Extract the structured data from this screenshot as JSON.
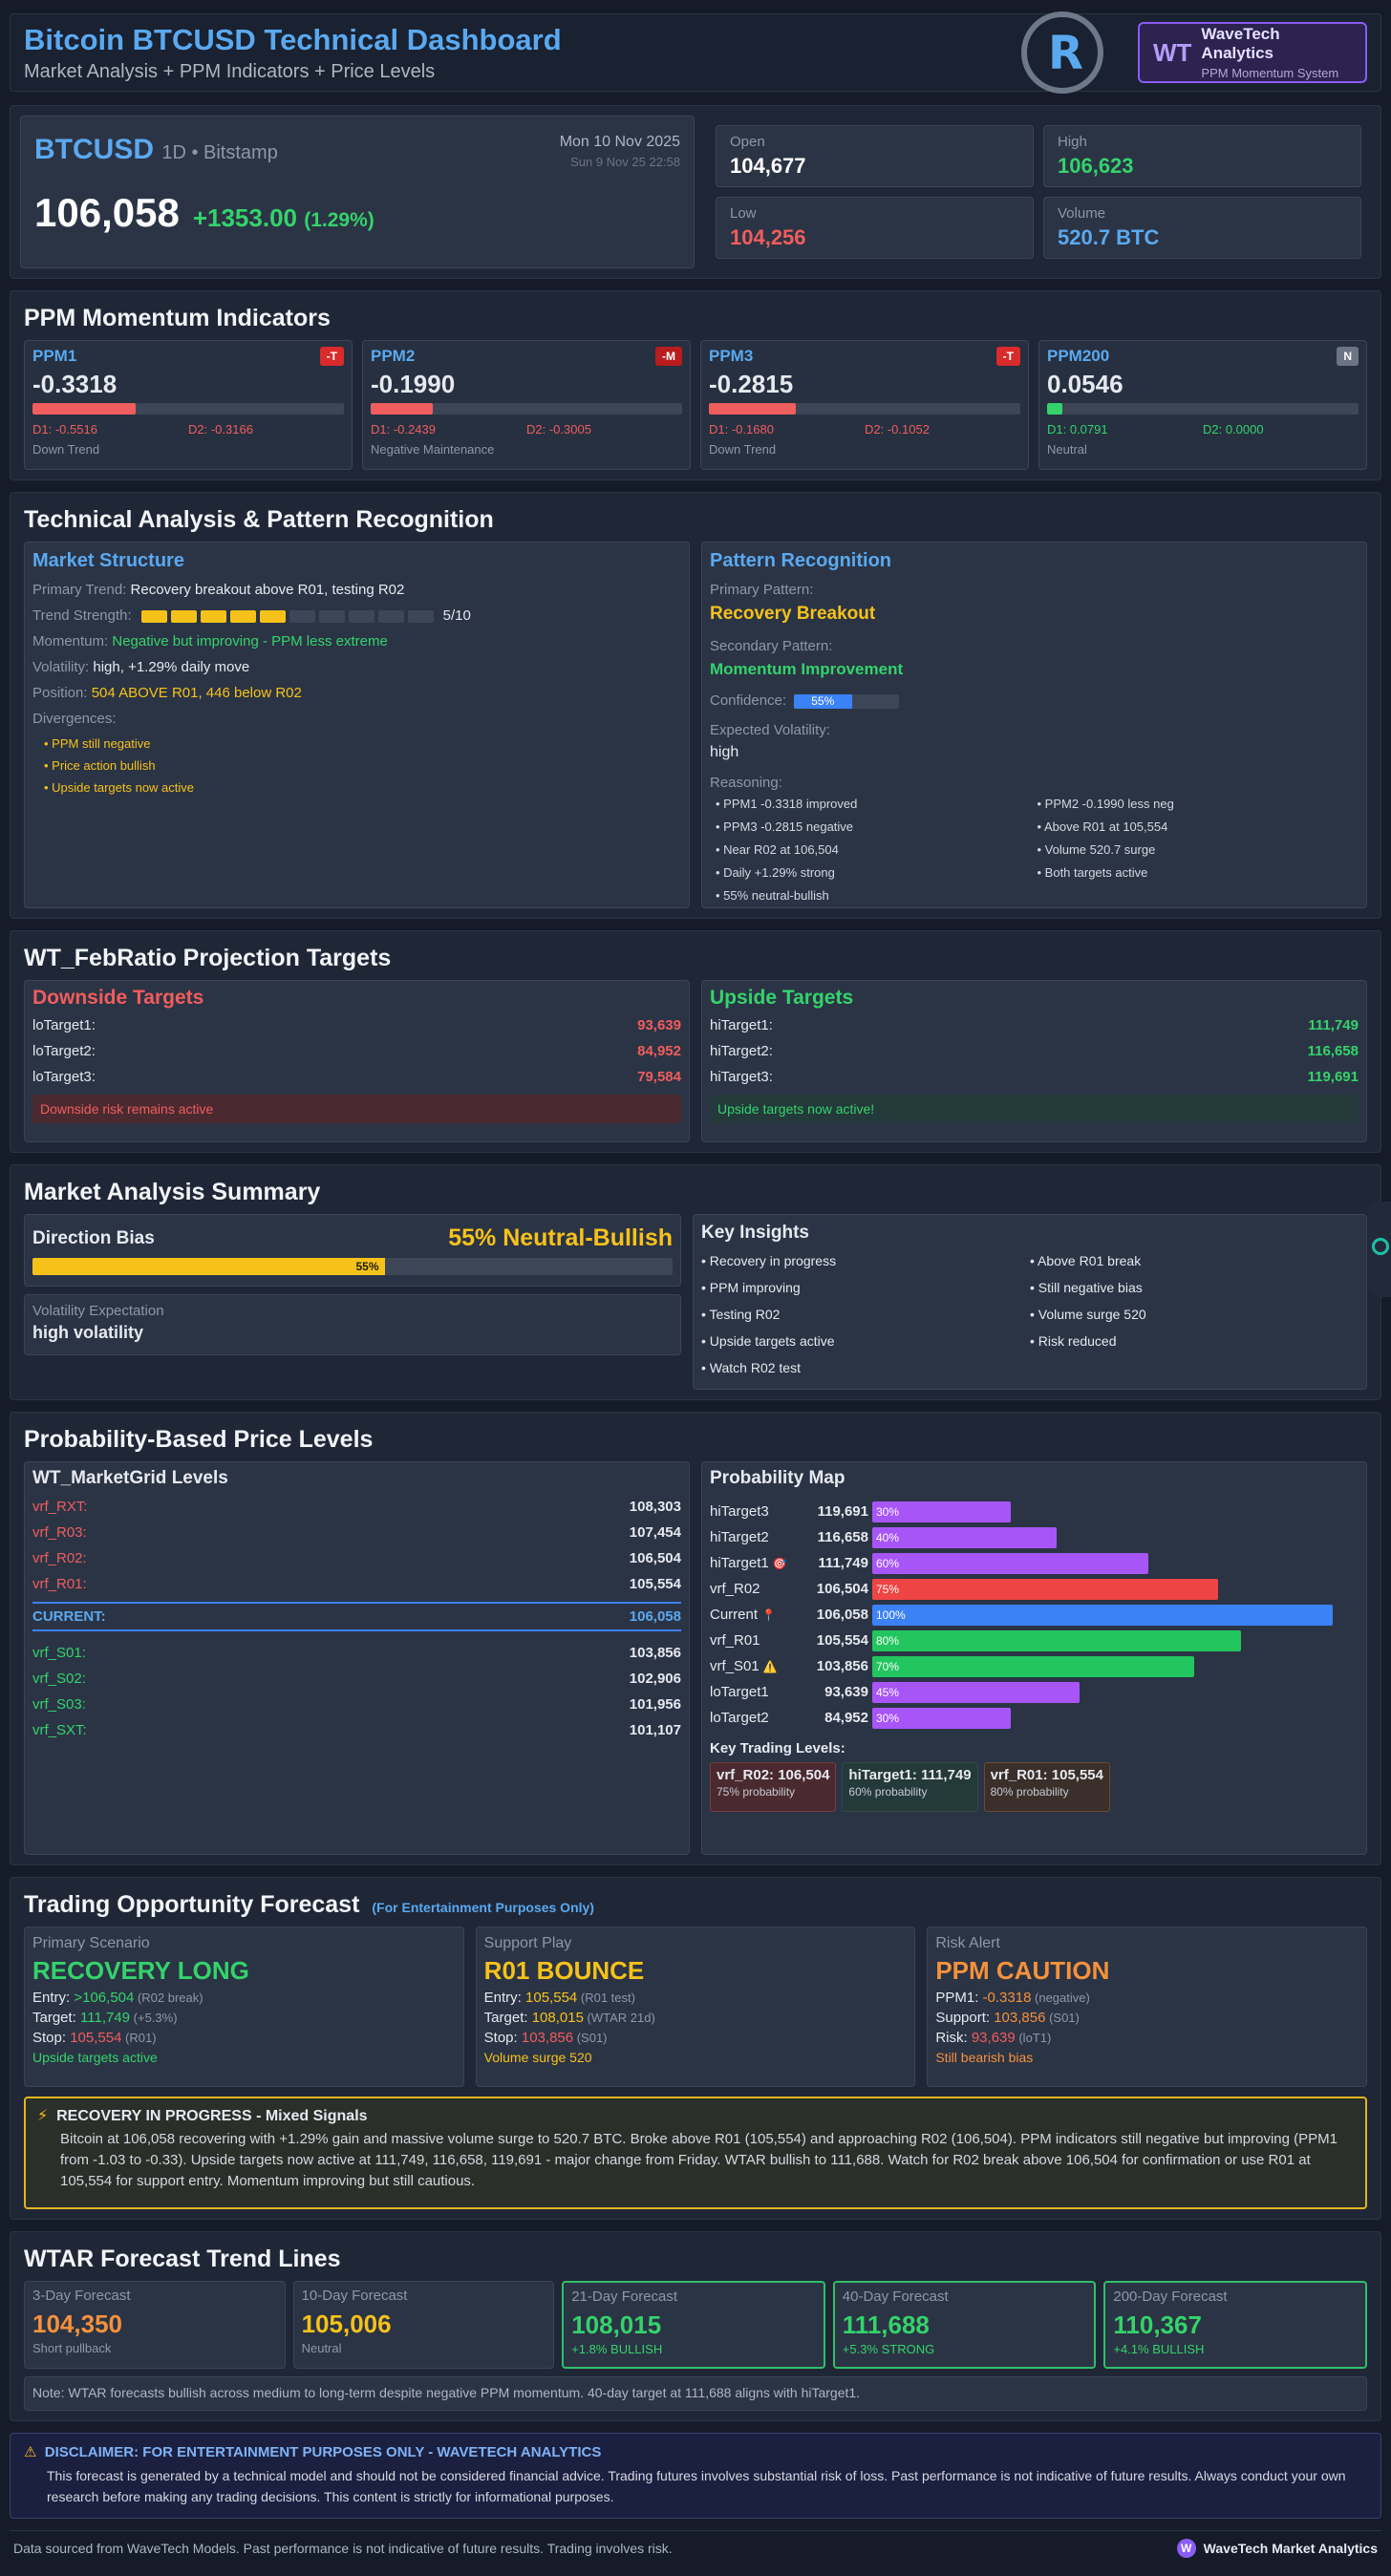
{
  "header": {
    "title": "Bitcoin BTCUSD Technical Dashboard",
    "subtitle": "Market Analysis + PPM Indicators + Price Levels",
    "logo_text": "R",
    "brand_badge": "WT",
    "brand_name": "WaveTech Analytics",
    "brand_tag": "PPM Momentum System"
  },
  "price": {
    "ticker": "BTCUSD",
    "meta": "1D • Bitstamp",
    "date": "Mon 10 Nov 2025",
    "time": "Sun 9 Nov 25 22:58",
    "last": "106,058",
    "change": "+1353.00",
    "change_pct": "(1.29%)",
    "ohlc": [
      {
        "label": "Open",
        "value": "104,677",
        "color": "#ffffff"
      },
      {
        "label": "High",
        "value": "106,623",
        "color": "#34d36b"
      },
      {
        "label": "Low",
        "value": "104,256",
        "color": "#f05d5d"
      },
      {
        "label": "Volume",
        "value": "520.7 BTC",
        "color": "#5aa9f0"
      }
    ]
  },
  "ppm": {
    "title": "PPM Momentum Indicators",
    "items": [
      {
        "name": "PPM1",
        "badge": "-T",
        "badge_color": "#d92b2b",
        "value": "-0.3318",
        "level": 0.33,
        "bar_color": "#f05d5d",
        "d1": "D1: -0.5516",
        "d2": "D2: -0.3166",
        "d_color": "#f05d5d",
        "foot": "Down Trend"
      },
      {
        "name": "PPM2",
        "badge": "-M",
        "badge_color": "#b91c1c",
        "value": "-0.1990",
        "level": 0.2,
        "bar_color": "#f05d5d",
        "d1": "D1: -0.2439",
        "d2": "D2: -0.3005",
        "d_color": "#f05d5d",
        "foot": "Negative Maintenance"
      },
      {
        "name": "PPM3",
        "badge": "-T",
        "badge_color": "#d92b2b",
        "value": "-0.2815",
        "level": 0.28,
        "bar_color": "#f05d5d",
        "d1": "D1: -0.1680",
        "d2": "D2: -0.1052",
        "d_color": "#f05d5d",
        "foot": "Down Trend"
      },
      {
        "name": "PPM200",
        "badge": "N",
        "badge_color": "#6b7385",
        "value": "0.0546",
        "level": 0.05,
        "bar_color": "#34d36b",
        "d1": "D1: 0.0791",
        "d2": "D2: 0.0000",
        "d_color": "#34d36b",
        "foot": "Neutral"
      }
    ]
  },
  "technical": {
    "title": "Technical Analysis & Pattern Recognition",
    "market_structure": {
      "title": "Market Structure",
      "primary_trend_label": "Primary Trend:",
      "primary_trend": "Recovery breakout above R01, testing R02",
      "strength_label": "Trend Strength:",
      "strength_value": 5,
      "strength_max": 10,
      "strength_text": "5/10",
      "momentum_label": "Momentum:",
      "momentum": "Negative but improving - PPM less extreme",
      "volatility_label": "Volatility:",
      "volatility": "high, +1.29% daily move",
      "position_label": "Position:",
      "position": "504 ABOVE R01, 446 below R02",
      "divergences_label": "Divergences:",
      "divergences": [
        "• PPM still negative",
        "• Price action bullish",
        "• Upside targets now active"
      ]
    },
    "pattern": {
      "title": "Pattern Recognition",
      "primary_label": "Primary Pattern:",
      "primary": "Recovery Breakout",
      "secondary_label": "Secondary Pattern:",
      "secondary": "Momentum Improvement",
      "confidence_label": "Confidence:",
      "confidence": 0.55,
      "confidence_text": "55%",
      "exp_vol_label": "Expected Volatility:",
      "exp_vol": "high",
      "reasoning_label": "Reasoning:",
      "reasoning": [
        "• PPM1 -0.3318 improved",
        "• PPM2 -0.1990 less neg",
        "• PPM3 -0.2815 negative",
        "• Above R01 at 105,554",
        "• Near R02 at 106,504",
        "• Volume 520.7 surge",
        "• Daily +1.29% strong",
        "• Both targets active",
        "• 55% neutral-bullish"
      ]
    }
  },
  "targets": {
    "title": "WT_FebRatio Projection Targets",
    "downside_title": "Downside Targets",
    "downside": [
      {
        "label": "loTarget1:",
        "value": "93,639"
      },
      {
        "label": "loTarget2:",
        "value": "84,952"
      },
      {
        "label": "loTarget3:",
        "value": "79,584"
      }
    ],
    "downside_note": "Downside risk remains active",
    "upside_title": "Upside Targets",
    "upside": [
      {
        "label": "hiTarget1:",
        "value": "111,749"
      },
      {
        "label": "hiTarget2:",
        "value": "116,658"
      },
      {
        "label": "hiTarget3:",
        "value": "119,691"
      }
    ],
    "upside_note": "Upside targets now active!"
  },
  "summary": {
    "title": "Market Analysis Summary",
    "direction_label": "Direction Bias",
    "direction_value": "55% Neutral-Bullish",
    "direction_level": 0.55,
    "direction_bar_text": "55%",
    "volatility_label": "Volatility Expectation",
    "volatility_value": "high volatility",
    "insights_title": "Key Insights",
    "insights": [
      "• Recovery in progress",
      "• Above R01 break",
      "• PPM improving",
      "• Still negative bias",
      "• Testing R02",
      "• Volume surge 520",
      "• Upside targets active",
      "• Risk reduced",
      "• Watch R02 test"
    ]
  },
  "levels": {
    "title": "Probability-Based Price Levels",
    "grid_title": "WT_MarketGrid Levels",
    "grid": [
      {
        "label": "vrf_RXT:",
        "value": "108,303",
        "color": "#f05d5d"
      },
      {
        "label": "vrf_R03:",
        "value": "107,454",
        "color": "#f05d5d"
      },
      {
        "label": "vrf_R02:",
        "value": "106,504",
        "color": "#f05d5d"
      },
      {
        "label": "vrf_R01:",
        "value": "105,554",
        "color": "#f05d5d"
      }
    ],
    "current_label": "CURRENT:",
    "current_value": "106,058",
    "support": [
      {
        "label": "vrf_S01:",
        "value": "103,856",
        "color": "#34d36b"
      },
      {
        "label": "vrf_S02:",
        "value": "102,906",
        "color": "#34d36b"
      },
      {
        "label": "vrf_S03:",
        "value": "101,956",
        "color": "#34d36b"
      },
      {
        "label": "vrf_SXT:",
        "value": "101,107",
        "color": "#34d36b"
      }
    ],
    "map_title": "Probability Map",
    "map": [
      {
        "label": "hiTarget3",
        "value": "119,691",
        "pct": 0.3,
        "pct_text": "30%",
        "color": "#a855f7",
        "icon": ""
      },
      {
        "label": "hiTarget2",
        "value": "116,658",
        "pct": 0.4,
        "pct_text": "40%",
        "color": "#a855f7",
        "icon": ""
      },
      {
        "label": "hiTarget1",
        "value": "111,749",
        "pct": 0.6,
        "pct_text": "60%",
        "color": "#a855f7",
        "icon": "🎯"
      },
      {
        "label": "vrf_R02",
        "value": "106,504",
        "pct": 0.75,
        "pct_text": "75%",
        "color": "#ef4444",
        "icon": ""
      },
      {
        "label": "Current",
        "value": "106,058",
        "pct": 1.0,
        "pct_text": "100%",
        "color": "#3b82f6",
        "icon": "📍"
      },
      {
        "label": "vrf_R01",
        "value": "105,554",
        "pct": 0.8,
        "pct_text": "80%",
        "color": "#22c55e",
        "icon": ""
      },
      {
        "label": "vrf_S01",
        "value": "103,856",
        "pct": 0.7,
        "pct_text": "70%",
        "color": "#22c55e",
        "icon": "⚠️"
      },
      {
        "label": "loTarget1",
        "value": "93,639",
        "pct": 0.45,
        "pct_text": "45%",
        "color": "#a855f7",
        "icon": ""
      },
      {
        "label": "loTarget2",
        "value": "84,952",
        "pct": 0.3,
        "pct_text": "30%",
        "color": "#a855f7",
        "icon": ""
      }
    ],
    "key_title": "Key Trading Levels:",
    "key_levels": [
      {
        "name": "vrf_R02: 106,504",
        "prob": "75% probability",
        "bg": "#4a2a30",
        "border": "#7a3a40"
      },
      {
        "name": "hiTarget1: 111,749",
        "prob": "60% probability",
        "bg": "#24393a",
        "border": "#2d4e48"
      },
      {
        "name": "vrf_R01: 105,554",
        "prob": "80% probability",
        "bg": "#3a2f2a",
        "border": "#6a4a30"
      }
    ]
  },
  "forecast": {
    "title": "Trading Opportunity Forecast",
    "title_note": "(For Entertainment Purposes Only)",
    "cards": [
      {
        "label": "Primary Scenario",
        "title": "RECOVERY LONG",
        "title_color": "#34d36b",
        "lines": [
          {
            "k": "Entry: ",
            "v": ">106,504",
            "vc": "#34d36b",
            "n": " (R02 break)"
          },
          {
            "k": "Target: ",
            "v": "111,749",
            "vc": "#34d36b",
            "n": " (+5.3%)"
          },
          {
            "k": "Stop: ",
            "v": "105,554",
            "vc": "#f05d5d",
            "n": " (R01)"
          }
        ],
        "foot": "Upside targets active",
        "foot_color": "#34d36b"
      },
      {
        "label": "Support Play",
        "title": "R01 BOUNCE",
        "title_color": "#f6c21a",
        "lines": [
          {
            "k": "Entry: ",
            "v": "105,554",
            "vc": "#f6c21a",
            "n": " (R01 test)"
          },
          {
            "k": "Target: ",
            "v": "108,015",
            "vc": "#f6c21a",
            "n": " (WTAR 21d)"
          },
          {
            "k": "Stop: ",
            "v": "103,856",
            "vc": "#f05d5d",
            "n": " (S01)"
          }
        ],
        "foot": "Volume surge 520",
        "foot_color": "#f6c21a"
      },
      {
        "label": "Risk Alert",
        "title": "PPM CAUTION",
        "title_color": "#f5913b",
        "lines": [
          {
            "k": "PPM1: ",
            "v": "-0.3318",
            "vc": "#f5913b",
            "n": " (negative)"
          },
          {
            "k": "Support: ",
            "v": "103,856",
            "vc": "#f5913b",
            "n": " (S01)"
          },
          {
            "k": "Risk: ",
            "v": "93,639",
            "vc": "#f05d5d",
            "n": " (loT1)"
          }
        ],
        "foot": "Still bearish bias",
        "foot_color": "#f5913b"
      }
    ],
    "alert_title": "RECOVERY IN PROGRESS - Mixed Signals",
    "alert_body": "Bitcoin at 106,058 recovering with +1.29% gain and massive volume surge to 520.7 BTC. Broke above R01 (105,554) and approaching R02 (106,504). PPM indicators still negative but improving (PPM1 from -1.03 to -0.33). Upside targets now active at 111,749, 116,658, 119,691 - major change from Friday. WTAR bullish to 111,688. Watch for R02 break above 106,504 for confirmation or use R01 at 105,554 for support entry. Momentum improving but still cautious."
  },
  "wtar": {
    "title": "WTAR Forecast Trend Lines",
    "items": [
      {
        "label": "3-Day Forecast",
        "value": "104,350",
        "color": "#f5913b",
        "sub": "Short pullback",
        "sub_color": "#8e97a8",
        "highlight": false
      },
      {
        "label": "10-Day Forecast",
        "value": "105,006",
        "color": "#f6c21a",
        "sub": "Neutral",
        "sub_color": "#8e97a8",
        "highlight": false
      },
      {
        "label": "21-Day Forecast",
        "value": "108,015",
        "color": "#34d36b",
        "sub": "+1.8% BULLISH",
        "sub_color": "#34d36b",
        "highlight": true
      },
      {
        "label": "40-Day Forecast",
        "value": "111,688",
        "color": "#34d36b",
        "sub": "+5.3% STRONG",
        "sub_color": "#34d36b",
        "highlight": true
      },
      {
        "label": "200-Day Forecast",
        "value": "110,367",
        "color": "#34d36b",
        "sub": "+4.1% BULLISH",
        "sub_color": "#34d36b",
        "highlight": true
      }
    ],
    "note": "Note: WTAR forecasts bullish across medium to long-term despite negative PPM momentum. 40-day target at 111,688 aligns with hiTarget1."
  },
  "disclaimer": {
    "title": "DISCLAIMER: FOR ENTERTAINMENT PURPOSES ONLY - WAVETECH ANALYTICS",
    "body": "This forecast is generated by a technical model and should not be considered financial advice. Trading futures involves substantial risk of loss. Past performance is not indicative of future results. Always conduct your own research before making any trading decisions. This content is strictly for informational purposes."
  },
  "footer": {
    "left": "Data sourced from WaveTech Models. Past performance is not indicative of future results. Trading involves risk.",
    "badge": "W",
    "right": "WaveTech Market Analytics"
  }
}
